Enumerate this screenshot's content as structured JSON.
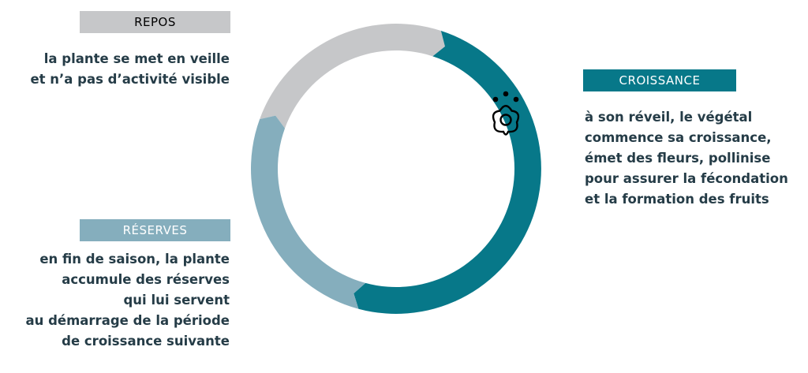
{
  "colors": {
    "repos": "#c6c7c9",
    "croissance": "#077889",
    "reserves": "#85aebd",
    "text": "#253c47"
  },
  "phases": {
    "repos": {
      "title": "REPOS",
      "lines": [
        "la plante se met en veille",
        "et n’a pas d’activité visible"
      ]
    },
    "croissance": {
      "title": "CROISSANCE",
      "lines": [
        "à son réveil, le végétal",
        "commence sa croissance,",
        "émet des fleurs, pollinise",
        "pour assurer la fécondation",
        "et la formation des fruits"
      ]
    },
    "reserves": {
      "title": "RÉSERVES",
      "lines": [
        "en fin de saison, la plante",
        "accumule des réserves",
        "qui lui servent",
        "au démarrage de la période",
        "de croissance suivante"
      ]
    }
  },
  "icons": {
    "growth": "flower-icon"
  }
}
